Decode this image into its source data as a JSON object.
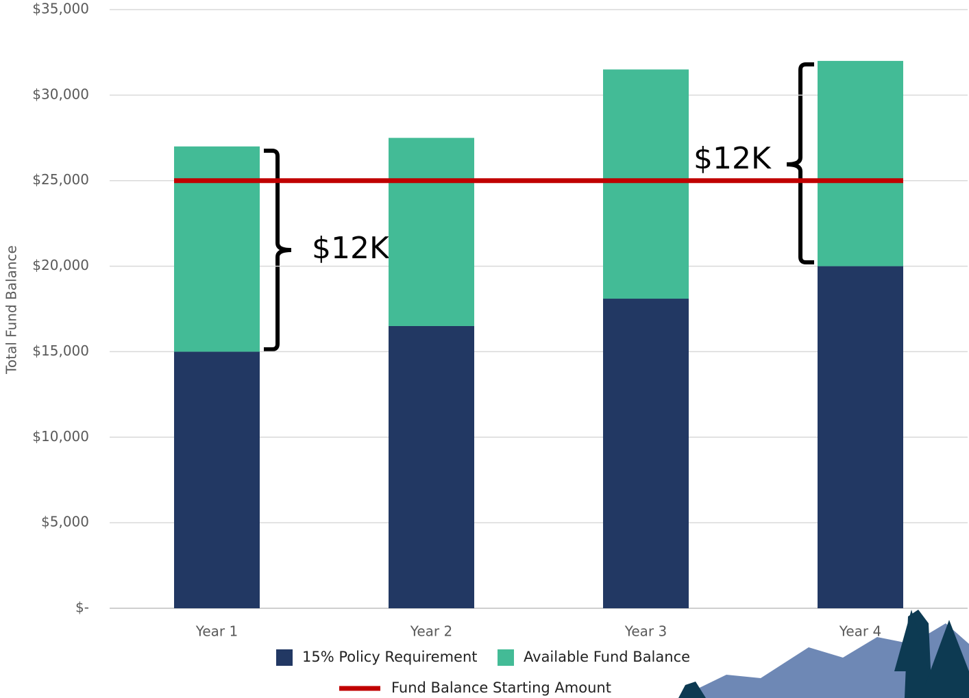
{
  "chart_data": {
    "type": "bar",
    "stacked": true,
    "y_label": "Total Fund Balance",
    "categories": [
      "Year 1",
      "Year 2",
      "Year 3",
      "Year 4"
    ],
    "series": [
      {
        "name": "15% Policy Requirement",
        "color": "#223863",
        "values": [
          15000,
          16500,
          18100,
          20000
        ]
      },
      {
        "name": "Available Fund Balance",
        "color": "#43bb96",
        "values": [
          12000,
          11000,
          13400,
          12000
        ]
      },
      {
        "name": "Fund Balance Starting Amount",
        "color": "#c00000",
        "type": "line",
        "values": [
          25000,
          25000,
          25000,
          25000
        ]
      }
    ],
    "ylim": [
      0,
      35000
    ],
    "yticks": [
      {
        "value": 0,
        "label": "$-"
      },
      {
        "value": 5000,
        "label": "$5,000"
      },
      {
        "value": 10000,
        "label": "$10,000"
      },
      {
        "value": 15000,
        "label": "$15,000"
      },
      {
        "value": 20000,
        "label": "$20,000"
      },
      {
        "value": 25000,
        "label": "$25,000"
      },
      {
        "value": 30000,
        "label": "$30,000"
      },
      {
        "value": 35000,
        "label": "$35,000"
      }
    ],
    "grid": true,
    "annotations": [
      "$12K",
      "$12K"
    ]
  }
}
